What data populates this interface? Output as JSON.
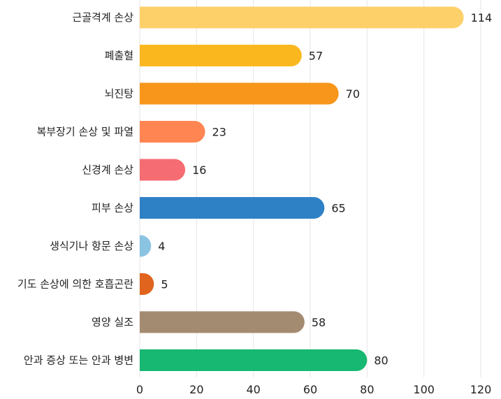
{
  "chart_data": {
    "type": "bar",
    "orientation": "horizontal",
    "categories": [
      "근골격계 손상",
      "폐출혈",
      "뇌진탕",
      "복부장기 손상 및 파열",
      "신경계 손상",
      "피부 손상",
      "생식기나 항문 손상",
      "기도 손상에 의한 호흡곤란",
      "영양 실조",
      "안과 증상 또는 안과 병변"
    ],
    "values": [
      114,
      57,
      70,
      23,
      16,
      65,
      4,
      5,
      58,
      80
    ],
    "colors": [
      "#FDD06A",
      "#FBB81E",
      "#F7961A",
      "#FF8553",
      "#F56C73",
      "#2F81C6",
      "#8BC3E3",
      "#E0641E",
      "#A38B72",
      "#17B871"
    ],
    "title": "",
    "xlabel": "",
    "ylabel": "",
    "xlim": [
      0,
      120
    ],
    "xticks": [
      0,
      20,
      40,
      60,
      80,
      100,
      120
    ],
    "grid": true,
    "legend": "none"
  }
}
